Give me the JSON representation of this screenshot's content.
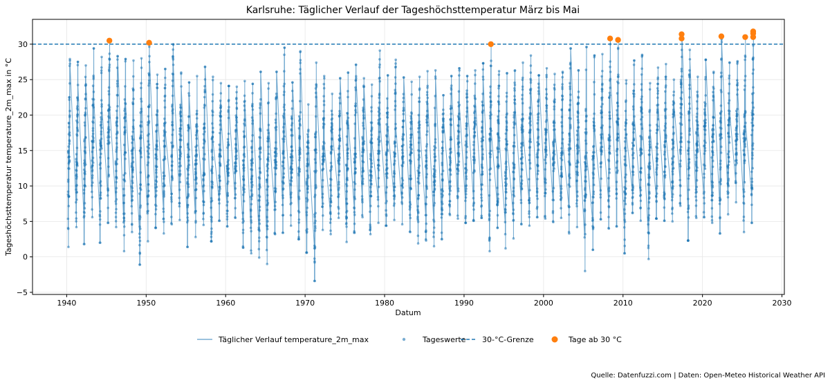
{
  "chart_data": {
    "type": "line",
    "title": "Karlsruhe: Täglicher Verlauf der Tageshöchsttemperatur März bis Mai",
    "xlabel": "Datum",
    "ylabel": "Tageshöchsttemperatur temperature_2m_max in °C",
    "xlim": [
      1935.7,
      2030.3
    ],
    "ylim": [
      -5.3,
      33.5
    ],
    "x_ticks": [
      "1940",
      "1950",
      "1960",
      "1970",
      "1980",
      "1990",
      "2000",
      "2010",
      "2020",
      "2030"
    ],
    "y_ticks": [
      "−5",
      "0",
      "5",
      "10",
      "15",
      "20",
      "25",
      "30"
    ],
    "grid": true,
    "threshold": 30,
    "season_months": [
      3,
      5
    ],
    "colors": {
      "line": "#1f77b4",
      "points": "#1f77b4",
      "threshold": "#1f77b4",
      "hot_days": "#ff7f0e"
    },
    "series": [
      {
        "name": "Täglicher Verlauf temperature_2m_max",
        "kind": "line"
      },
      {
        "name": "Tageswerte",
        "kind": "scatter"
      },
      {
        "name": "30-°C-Grenze",
        "kind": "hline",
        "value": 30
      },
      {
        "name": "Tage ab 30 °C",
        "kind": "scatter"
      }
    ],
    "yearly_spring_range": [
      {
        "year": 1940,
        "min": 1.4,
        "max": 27.9
      },
      {
        "year": 1941,
        "min": 4.2,
        "max": 27.5
      },
      {
        "year": 1942,
        "min": 1.8,
        "max": 27.0
      },
      {
        "year": 1943,
        "min": 5.6,
        "max": 29.4
      },
      {
        "year": 1944,
        "min": 2.0,
        "max": 28.2
      },
      {
        "year": 1945,
        "min": 4.8,
        "max": 30.5
      },
      {
        "year": 1946,
        "min": 4.2,
        "max": 28.3
      },
      {
        "year": 1947,
        "min": 0.8,
        "max": 27.9
      },
      {
        "year": 1948,
        "min": 3.5,
        "max": 27.7
      },
      {
        "year": 1949,
        "min": -1.1,
        "max": 28.0
      },
      {
        "year": 1950,
        "min": 2.2,
        "max": 30.2
      },
      {
        "year": 1951,
        "min": 4.1,
        "max": 25.7
      },
      {
        "year": 1952,
        "min": 3.3,
        "max": 26.5
      },
      {
        "year": 1953,
        "min": 4.6,
        "max": 30.0
      },
      {
        "year": 1954,
        "min": 5.2,
        "max": 26.0
      },
      {
        "year": 1955,
        "min": 1.4,
        "max": 24.6
      },
      {
        "year": 1956,
        "min": 2.8,
        "max": 25.5
      },
      {
        "year": 1957,
        "min": 4.5,
        "max": 26.8
      },
      {
        "year": 1958,
        "min": 2.2,
        "max": 25.4
      },
      {
        "year": 1959,
        "min": 5.1,
        "max": 24.5
      },
      {
        "year": 1960,
        "min": 4.3,
        "max": 24.1
      },
      {
        "year": 1961,
        "min": 5.5,
        "max": 24.0
      },
      {
        "year": 1962,
        "min": 1.3,
        "max": 24.8
      },
      {
        "year": 1963,
        "min": 0.5,
        "max": 24.4
      },
      {
        "year": 1964,
        "min": -0.1,
        "max": 26.1
      },
      {
        "year": 1965,
        "min": -1.0,
        "max": 24.5
      },
      {
        "year": 1966,
        "min": 3.2,
        "max": 26.1
      },
      {
        "year": 1967,
        "min": 3.4,
        "max": 29.5
      },
      {
        "year": 1968,
        "min": 4.4,
        "max": 24.6
      },
      {
        "year": 1969,
        "min": 2.5,
        "max": 29.0
      },
      {
        "year": 1970,
        "min": 0.6,
        "max": 21.5
      },
      {
        "year": 1971,
        "min": -3.4,
        "max": 27.4
      },
      {
        "year": 1972,
        "min": 3.8,
        "max": 25.5
      },
      {
        "year": 1973,
        "min": 3.2,
        "max": 23.0
      },
      {
        "year": 1974,
        "min": 5.5,
        "max": 25.2
      },
      {
        "year": 1975,
        "min": 2.1,
        "max": 26.0
      },
      {
        "year": 1976,
        "min": 3.4,
        "max": 27.1
      },
      {
        "year": 1977,
        "min": 5.6,
        "max": 25.2
      },
      {
        "year": 1978,
        "min": 3.2,
        "max": 24.3
      },
      {
        "year": 1979,
        "min": 4.8,
        "max": 29.1
      },
      {
        "year": 1980,
        "min": 4.4,
        "max": 25.6
      },
      {
        "year": 1981,
        "min": 5.2,
        "max": 27.8
      },
      {
        "year": 1982,
        "min": 4.6,
        "max": 25.3
      },
      {
        "year": 1983,
        "min": 3.5,
        "max": 24.7
      },
      {
        "year": 1984,
        "min": 1.9,
        "max": 25.4
      },
      {
        "year": 1985,
        "min": 2.3,
        "max": 26.2
      },
      {
        "year": 1986,
        "min": 1.5,
        "max": 26.3
      },
      {
        "year": 1987,
        "min": 2.5,
        "max": 22.8
      },
      {
        "year": 1988,
        "min": 5.9,
        "max": 25.5
      },
      {
        "year": 1989,
        "min": 5.4,
        "max": 26.6
      },
      {
        "year": 1990,
        "min": 4.8,
        "max": 25.5
      },
      {
        "year": 1991,
        "min": 5.1,
        "max": 26.3
      },
      {
        "year": 1992,
        "min": 5.5,
        "max": 27.3
      },
      {
        "year": 1993,
        "min": 0.8,
        "max": 30.0
      },
      {
        "year": 1994,
        "min": 4.1,
        "max": 26.2
      },
      {
        "year": 1995,
        "min": 1.2,
        "max": 25.9
      },
      {
        "year": 1996,
        "min": 2.6,
        "max": 26.3
      },
      {
        "year": 1997,
        "min": 4.6,
        "max": 27.4
      },
      {
        "year": 1998,
        "min": 4.4,
        "max": 28.4
      },
      {
        "year": 1999,
        "min": 5.6,
        "max": 25.6
      },
      {
        "year": 2000,
        "min": 5.4,
        "max": 26.6
      },
      {
        "year": 2001,
        "min": 4.9,
        "max": 25.8
      },
      {
        "year": 2002,
        "min": 5.5,
        "max": 26.1
      },
      {
        "year": 2003,
        "min": 3.3,
        "max": 29.4
      },
      {
        "year": 2004,
        "min": 4.2,
        "max": 26.3
      },
      {
        "year": 2005,
        "min": -2.0,
        "max": 29.6
      },
      {
        "year": 2006,
        "min": 1.0,
        "max": 28.4
      },
      {
        "year": 2007,
        "min": 5.3,
        "max": 28.6
      },
      {
        "year": 2008,
        "min": 4.0,
        "max": 30.8
      },
      {
        "year": 2009,
        "min": 4.3,
        "max": 30.6
      },
      {
        "year": 2010,
        "min": 0.5,
        "max": 24.9
      },
      {
        "year": 2011,
        "min": 6.2,
        "max": 27.7
      },
      {
        "year": 2012,
        "min": 5.1,
        "max": 28.5
      },
      {
        "year": 2013,
        "min": -0.3,
        "max": 24.5
      },
      {
        "year": 2014,
        "min": 5.4,
        "max": 26.7
      },
      {
        "year": 2015,
        "min": 5.1,
        "max": 27.2
      },
      {
        "year": 2016,
        "min": 5.0,
        "max": 25.0
      },
      {
        "year": 2017,
        "min": 7.2,
        "max": 31.4
      },
      {
        "year": 2018,
        "min": 2.3,
        "max": 29.2
      },
      {
        "year": 2019,
        "min": 5.5,
        "max": 25.4
      },
      {
        "year": 2020,
        "min": 5.6,
        "max": 27.8
      },
      {
        "year": 2021,
        "min": 4.8,
        "max": 26.1
      },
      {
        "year": 2022,
        "min": 3.3,
        "max": 31.1
      },
      {
        "year": 2023,
        "min": 6.0,
        "max": 27.4
      },
      {
        "year": 2024,
        "min": 7.7,
        "max": 27.6
      },
      {
        "year": 2025,
        "min": 3.5,
        "max": 31.0
      },
      {
        "year": 2026,
        "min": 4.8,
        "max": 31.8
      }
    ],
    "hot_days": [
      {
        "date": "1945-05",
        "value": 30.5
      },
      {
        "date": "1950-05",
        "value": 30.2
      },
      {
        "date": "1993-05",
        "value": 30.0
      },
      {
        "date": "2008-05",
        "value": 30.8
      },
      {
        "date": "2009-05",
        "value": 30.6
      },
      {
        "date": "2017-05",
        "value": 30.8
      },
      {
        "date": "2017-05",
        "value": 31.4
      },
      {
        "date": "2022-05",
        "value": 31.1
      },
      {
        "date": "2025-05",
        "value": 31.0
      },
      {
        "date": "2026-05",
        "value": 31.0
      },
      {
        "date": "2026-05",
        "value": 31.5
      },
      {
        "date": "2026-05",
        "value": 31.8
      }
    ]
  },
  "footer": {
    "source": "Quelle: Datenfuzzi.com | Daten: Open-Meteo Historical Weather API"
  }
}
